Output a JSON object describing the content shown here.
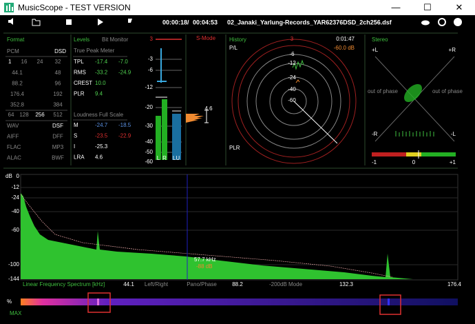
{
  "window": {
    "title": "MusicScope - TEST VERSION"
  },
  "toolbar": {
    "elapsed": "00:00:18",
    "separator": "/",
    "total": "00:04:53",
    "file": "02_Janaki_Yarlung-Records_YAR62376DSD_2ch256.dsf"
  },
  "format": {
    "title": "Format",
    "header": [
      "PCM",
      "DSD"
    ],
    "bits": [
      "1",
      "16",
      "24",
      "32"
    ],
    "rates": [
      [
        "44.1",
        "48"
      ],
      [
        "88.2",
        "96"
      ],
      [
        "176.4",
        "192"
      ],
      [
        "352.8",
        "384"
      ]
    ],
    "dsd": [
      "64",
      "128",
      "256",
      "512"
    ],
    "containers": [
      [
        "WAV",
        "DSF"
      ],
      [
        "AIFF",
        "DFF"
      ],
      [
        "FLAC",
        "MP3"
      ],
      [
        "ALAC",
        "BWF"
      ]
    ]
  },
  "levels": {
    "title": "Levels",
    "bit_monitor": "Bit Monitor",
    "true_peak": "True Peak Meter",
    "rows": [
      [
        "TPL",
        "-17.4",
        "-7.0"
      ],
      [
        "RMS",
        "-33.2",
        "-24.9"
      ],
      [
        "CREST",
        "10.0"
      ],
      [
        "PLR",
        "9.4"
      ]
    ],
    "loudness": "Loudness Full Scale",
    "loud_rows": [
      [
        "M",
        "-24.7",
        "-18.5"
      ],
      [
        "S",
        "-23.5",
        "-22.9"
      ],
      [
        "I",
        "-25.3"
      ],
      [
        "LRA",
        "4.6"
      ]
    ]
  },
  "meter": {
    "scale": [
      "3",
      "-3",
      "-6",
      "-12",
      "-20",
      "-30",
      "-40",
      "-50",
      "-60"
    ],
    "channels": [
      "L",
      "R",
      "LU"
    ],
    "mode": "S-Mode",
    "value": "4.6"
  },
  "history": {
    "title": "History",
    "mode": "P/L",
    "time": "0:01:47",
    "level": "-60.0 dB",
    "rings": [
      "3",
      "-6",
      "-12",
      "-24",
      "-40",
      "-60"
    ],
    "footer": "PLR"
  },
  "stereo": {
    "title": "Stereo",
    "corners": [
      "+L",
      "+R",
      "-R",
      "-L"
    ],
    "out_of_phase": [
      "out of phase",
      "out of phase"
    ],
    "scale": [
      "-1",
      "0",
      "+1"
    ]
  },
  "spectrum": {
    "unit": "dB",
    "db_labels": [
      "0",
      "-12",
      "-24",
      "-40",
      "-60",
      "-100",
      "-144"
    ],
    "title": "Linear Frequency Spectrum [kHz]",
    "x_labels": [
      "44.1",
      "Left/Right",
      "Pano/Phase",
      "88.2",
      "-200dB Mode",
      "132.3",
      "176.4"
    ],
    "cursor": [
      "57.7 kHz",
      "-88 dB"
    ]
  },
  "strip": {
    "unit": "%",
    "max": "MAX"
  }
}
